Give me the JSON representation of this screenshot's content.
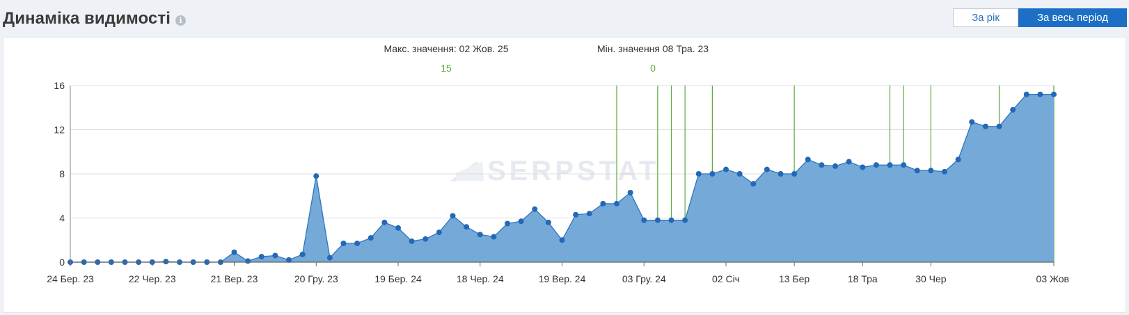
{
  "header": {
    "title": "Динаміка видимості",
    "info_icon": "info-icon",
    "period_year_label": "За рік",
    "period_all_label": "За весь період",
    "active_period": "all"
  },
  "annotations": {
    "max_label": "Макс. значення: 02 Жов. 25",
    "max_value": "15",
    "min_label": "Мін. значення 08 Тра. 23",
    "min_value": "0"
  },
  "watermark": "SERPSTAT",
  "colors": {
    "area_fill": "#74a9d8",
    "line": "#2f74c0",
    "marker": "#2369b8",
    "event_line": "#5aaa3a",
    "grid": "#dcdcdc",
    "accent": "#1d6fc5"
  },
  "chart_data": {
    "type": "area",
    "title": "Динаміка видимості",
    "xlabel": "",
    "ylabel": "",
    "ylim": [
      0,
      16
    ],
    "yticks": [
      0,
      4,
      8,
      12,
      16
    ],
    "grid": true,
    "legend": "none",
    "x_tick_labels": [
      {
        "index": 0,
        "label": "24 Бер. 23"
      },
      {
        "index": 6,
        "label": "22 Чер. 23"
      },
      {
        "index": 12,
        "label": "21 Вер. 23"
      },
      {
        "index": 18,
        "label": "20 Гру. 23"
      },
      {
        "index": 24,
        "label": "19 Бер. 24"
      },
      {
        "index": 30,
        "label": "18 Чер. 24"
      },
      {
        "index": 36,
        "label": "19 Вер. 24"
      },
      {
        "index": 42,
        "label": "03 Гру. 24"
      },
      {
        "index": 48,
        "label": "02 Січ"
      },
      {
        "index": 53,
        "label": "13 Бер"
      },
      {
        "index": 58,
        "label": "18 Тра"
      },
      {
        "index": 63,
        "label": "30 Чер"
      },
      {
        "index": 72,
        "label": "03 Жов"
      }
    ],
    "series": [
      {
        "values": [
          0,
          0,
          0,
          0,
          0,
          0,
          0,
          0.05,
          0,
          0,
          0,
          0,
          0.9,
          0.1,
          0.5,
          0.6,
          0.2,
          0.7,
          7.8,
          0.4,
          1.7,
          1.7,
          2.2,
          3.6,
          3.1,
          1.9,
          2.1,
          2.7,
          4.2,
          3.2,
          2.5,
          2.3,
          3.5,
          3.7,
          4.8,
          3.6,
          2.0,
          4.3,
          4.4,
          5.3,
          5.3,
          6.3,
          3.8,
          3.8,
          3.8,
          3.8,
          8.0,
          8.0,
          8.4,
          8.0,
          7.1,
          8.4,
          8.0,
          8.0,
          9.3,
          8.8,
          8.7,
          9.1,
          8.6,
          8.8,
          8.8,
          8.8,
          8.3,
          8.3,
          8.2,
          9.3,
          12.7,
          12.3,
          12.3,
          13.8,
          15.2,
          15.2,
          15.2
        ]
      }
    ],
    "event_marker_indices": [
      40,
      43,
      44,
      45,
      47,
      53,
      60,
      61,
      63,
      68,
      72
    ],
    "max_point": {
      "date": "02 Жов. 25",
      "value": 15
    },
    "min_point": {
      "date": "08 Тра. 23",
      "value": 0
    }
  }
}
